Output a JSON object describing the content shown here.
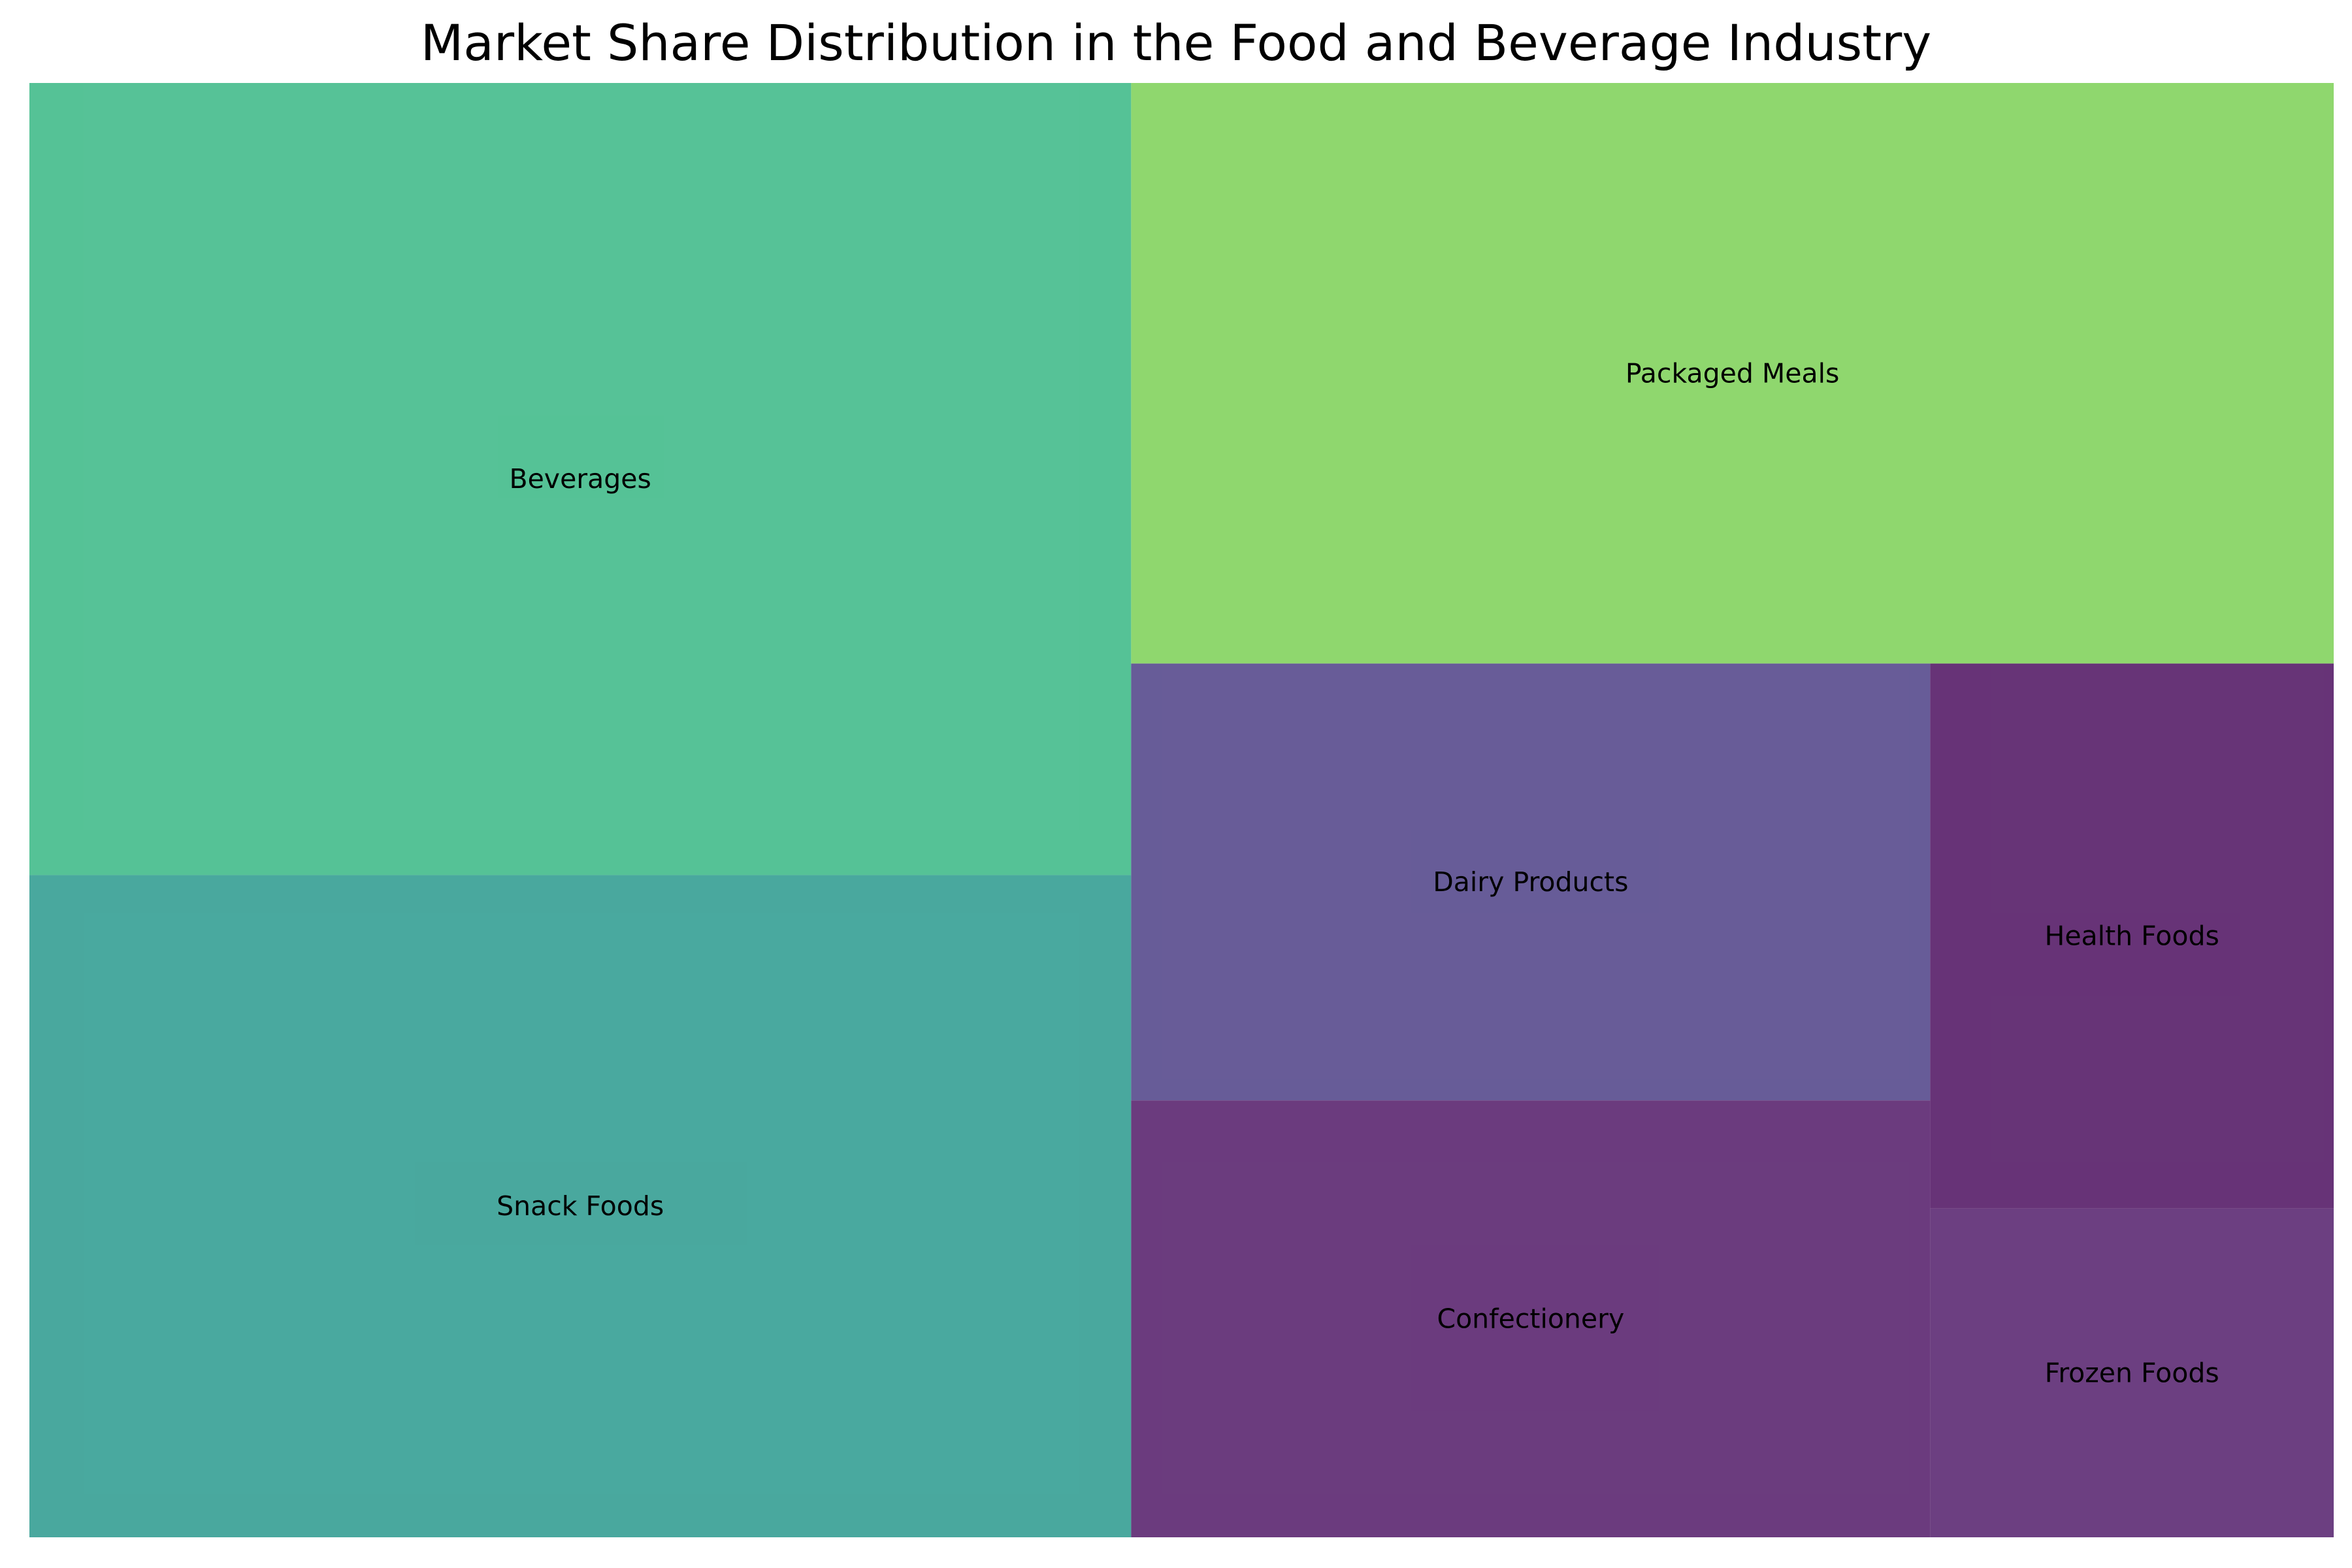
{
  "chart_data": {
    "type": "treemap",
    "title": "Market Share Distribution in the Food and Beverage Industry",
    "categories": [
      "Beverages",
      "Snack Foods",
      "Packaged Meals",
      "Dairy Products",
      "Confectionery",
      "Health Foods",
      "Frozen Foods"
    ],
    "values": [
      25,
      20.9,
      20,
      10,
      10,
      6.3,
      3.8
    ],
    "colors": [
      "#43bb8b",
      "#359f94",
      "#83d35e",
      "#574a8d",
      "#5b2670",
      "#561d68",
      "#5c2a73"
    ],
    "tile_opacity": 0.9,
    "grid": false,
    "legend": "none"
  }
}
